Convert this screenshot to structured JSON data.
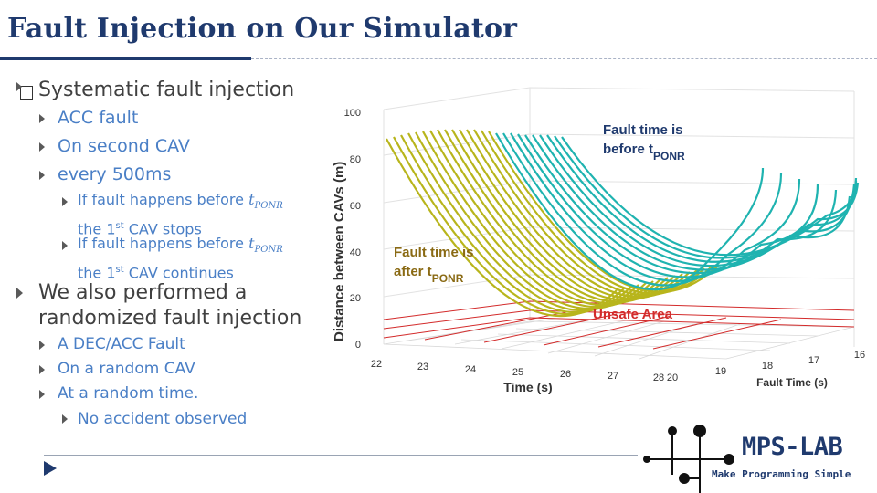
{
  "slide": {
    "title": "Fault Injection on Our Simulator"
  },
  "bullets": {
    "b1": "Systematic fault injection",
    "b1_items": [
      "ACC fault",
      "On second CAV",
      "every 500ms"
    ],
    "b1_sub": {
      "s1_pre": "If fault happens before",
      "s1_line2_a": "the 1",
      "s1_line2_sup": "st",
      "s1_line2_b": " CAV stops",
      "s2_pre": "If fault happens before",
      "s2_line2_a": "the 1",
      "s2_line2_sup": "st",
      "s2_line2_b": " CAV continues",
      "t_symbol": "t",
      "t_subscript": "PONR"
    },
    "b2_line1": "We also performed a",
    "b2_line2": "randomized fault injection",
    "b2_items": [
      "A DEC/ACC Fault",
      "On a random CAV",
      "At a random time."
    ],
    "b2_sub": "No accident observed"
  },
  "chart": {
    "ylabel": "Distance between CAVs (m)",
    "y_ticks": [
      "100",
      "80",
      "60",
      "40",
      "20",
      "0"
    ],
    "time_ticks": [
      "22",
      "23",
      "24",
      "25",
      "26",
      "27",
      "28"
    ],
    "time_label": "Time (s)",
    "fault_ticks": [
      "20",
      "19",
      "18",
      "17",
      "16"
    ],
    "fault_label": "Fault Time (s)",
    "annotation_before_l1": "Fault time is",
    "annotation_before_l2": "before t",
    "annotation_before_sub": "PONR",
    "annotation_after_l1": "Fault time is",
    "annotation_after_l2": "after t",
    "annotation_after_sub": "PONR",
    "unsafe_label": "Unsafe Area",
    "colors": {
      "teal": "#1fb3b0",
      "olive": "#b8b51c",
      "unsafe": "#d32b2b"
    }
  },
  "logo": {
    "name": "MPS-LAB",
    "tagline": "Make Programming Simple"
  }
}
